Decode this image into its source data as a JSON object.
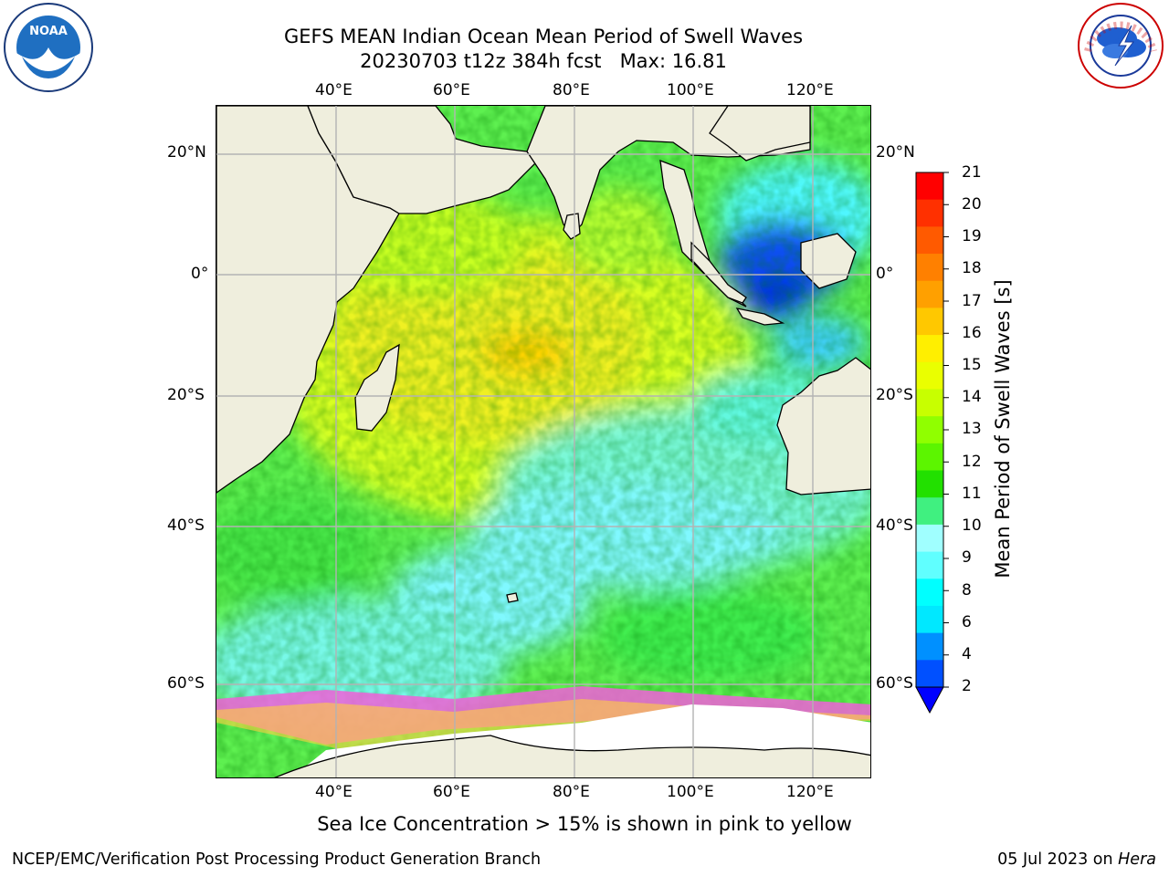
{
  "header": {
    "title_line1": "GEFS MEAN Indian Ocean Mean Period of Swell Waves",
    "title_line2": "20230703 t12z 384h fcst   Max: 16.81"
  },
  "map": {
    "lon_labels": [
      "40°E",
      "60°E",
      "80°E",
      "100°E",
      "120°E"
    ],
    "lat_labels": [
      "20°N",
      "0°",
      "20°S",
      "40°S",
      "60°S"
    ]
  },
  "colorbar": {
    "label": "Mean Period of Swell Waves [s]",
    "ticks": [
      "21",
      "20",
      "19",
      "18",
      "17",
      "16",
      "15",
      "14",
      "13",
      "12",
      "11",
      "10",
      "9",
      "8",
      "6",
      "4",
      "2"
    ],
    "colors": [
      "#ff0000",
      "#ff3000",
      "#ff5a00",
      "#ff8000",
      "#ffa000",
      "#ffc800",
      "#ffef00",
      "#eaff00",
      "#c8ff00",
      "#90ff00",
      "#5cf500",
      "#22e000",
      "#40f080",
      "#a0ffff",
      "#60ffff",
      "#00ffff",
      "#00e8ff",
      "#0090ff",
      "#0050ff"
    ],
    "extend_color": "#0000ff"
  },
  "caption": "Sea Ice Concentration > 15% is shown in pink to yellow",
  "footer": {
    "left": "NCEP/EMC/Verification Post Processing Product Generation Branch",
    "right_date": "05 Jul 2023 on ",
    "right_host": "Hera"
  },
  "logos": {
    "left": {
      "text": "NOAA",
      "ring_text": "NATIONAL OCEANIC AND ATMOSPHERIC ADMINISTRATION · U.S. DEPARTMENT OF COMMERCE"
    },
    "right": {
      "ring_text": "NATIONAL WEATHER SERVICE"
    }
  }
}
